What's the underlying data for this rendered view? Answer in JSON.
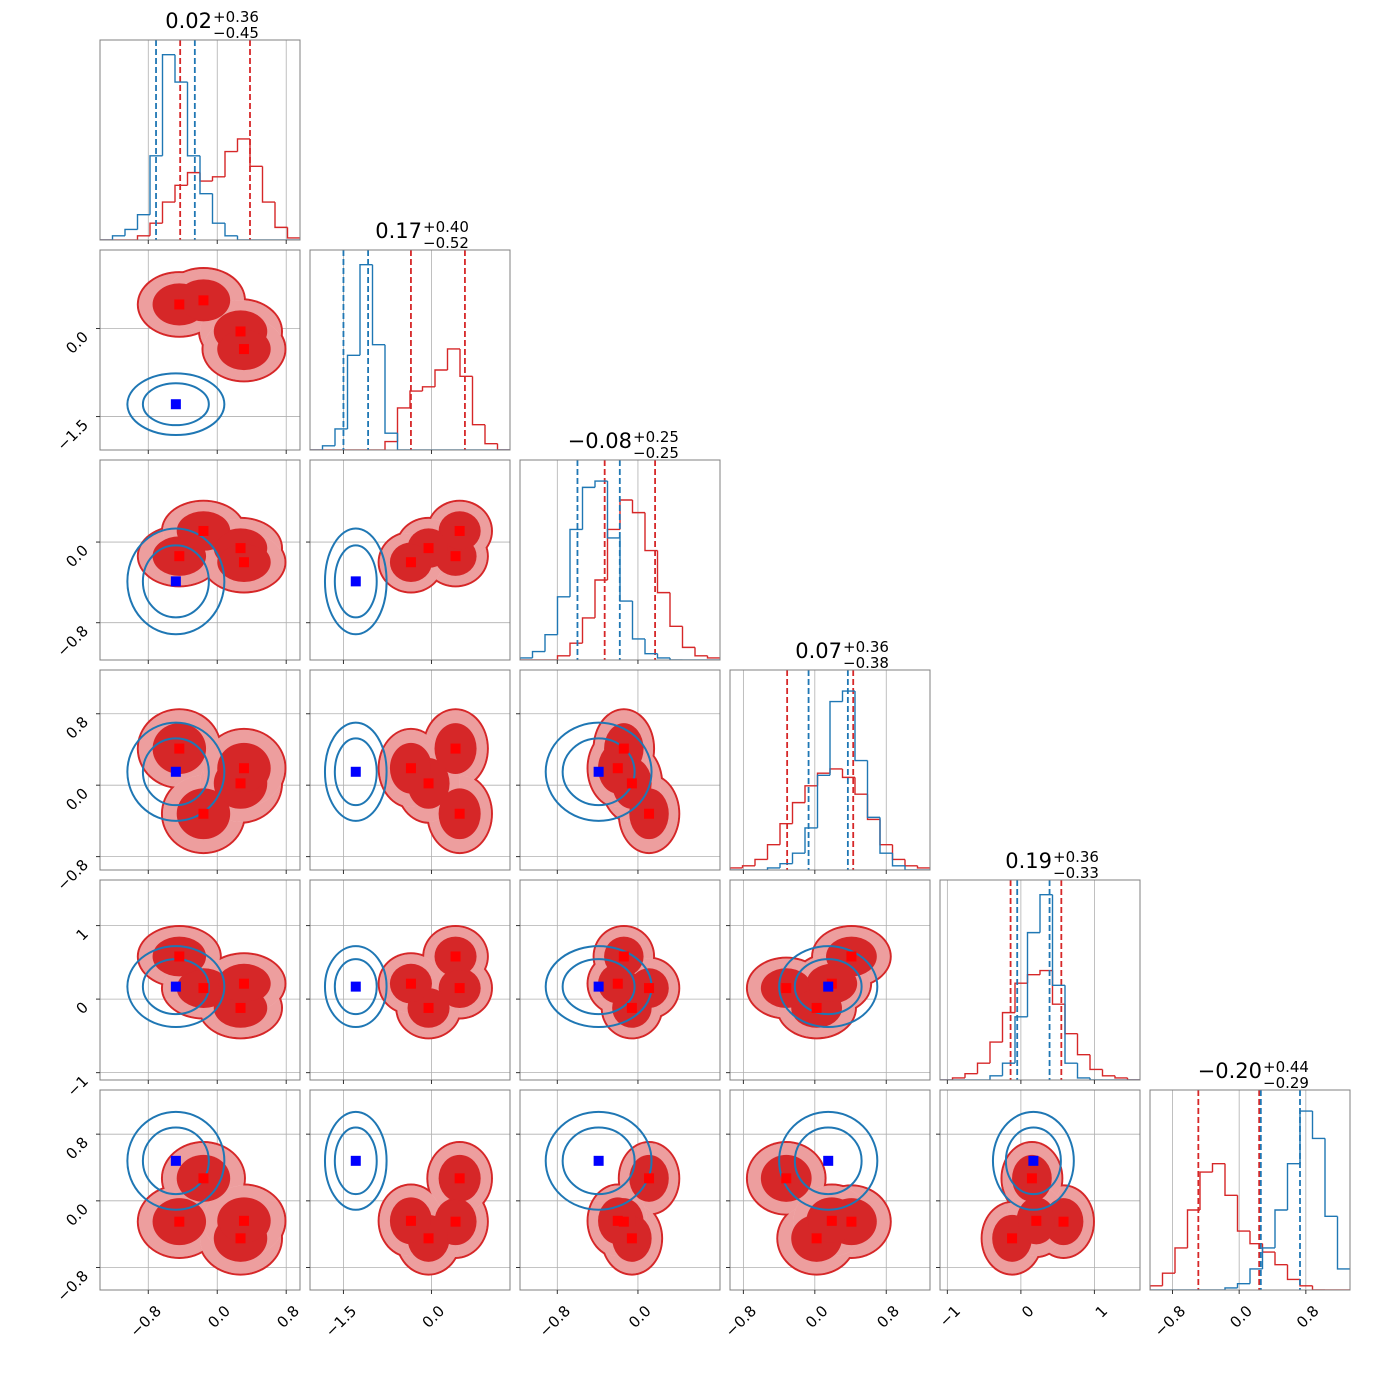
{
  "chart_data": {
    "type": "corner",
    "grid": true,
    "hist_ylim": [
      0,
      95
    ],
    "params": [
      {
        "title": "0.02",
        "title_plus": "+0.36",
        "title_minus": "−0.45",
        "lim": [
          -1.36,
          0.96
        ],
        "ticks": [
          {
            "value": -0.8,
            "label": "−0.8"
          },
          {
            "value": 0,
            "label": "0.0"
          },
          {
            "value": 0.8,
            "label": "0.8"
          }
        ],
        "bins": [
          -1.36,
          -1.215,
          -1.07,
          -0.925,
          -0.78,
          -0.635,
          -0.49,
          -0.345,
          -0.2,
          -0.055,
          0.09,
          0.235,
          0.38,
          0.525,
          0.67,
          0.815,
          0.96
        ]
      },
      {
        "title": "0.17",
        "title_plus": "+0.40",
        "title_minus": "−0.52",
        "lim": [
          -2.07,
          1.338
        ],
        "ticks": [
          {
            "value": -1.5,
            "label": "−1.5"
          },
          {
            "value": 0,
            "label": "0.0"
          }
        ],
        "bins": [
          -2.07,
          -1.857,
          -1.644,
          -1.431,
          -1.218,
          -1.005,
          -0.792,
          -0.579,
          -0.366,
          -0.153,
          0.06,
          0.273,
          0.486,
          0.699,
          0.912,
          1.125,
          1.338
        ]
      },
      {
        "title": "−0.08",
        "title_plus": "+0.25",
        "title_minus": "−0.25",
        "lim": [
          -1.17,
          0.814
        ],
        "ticks": [
          {
            "value": -0.8,
            "label": "−0.8"
          },
          {
            "value": 0,
            "label": "0.0"
          }
        ],
        "bins": [
          -1.17,
          -1.046,
          -0.922,
          -0.798,
          -0.674,
          -0.55,
          -0.426,
          -0.302,
          -0.178,
          -0.054,
          0.07,
          0.194,
          0.318,
          0.442,
          0.566,
          0.69,
          0.814
        ]
      },
      {
        "title": "0.07",
        "title_plus": "+0.36",
        "title_minus": "−0.38",
        "lim": [
          -0.95,
          1.29
        ],
        "ticks": [
          {
            "value": -0.8,
            "label": "−0.8"
          },
          {
            "value": 0,
            "label": "0.0"
          },
          {
            "value": 0.8,
            "label": "0.8"
          }
        ],
        "bins": [
          -0.95,
          -0.81,
          -0.67,
          -0.53,
          -0.39,
          -0.25,
          -0.11,
          0.03,
          0.17,
          0.31,
          0.45,
          0.59,
          0.73,
          0.87,
          1.01,
          1.15,
          1.29
        ]
      },
      {
        "title": "0.19",
        "title_plus": "+0.36",
        "title_minus": "−0.33",
        "lim": [
          -1.1,
          1.62
        ],
        "ticks": [
          {
            "value": -1,
            "label": "−1"
          },
          0,
          1
        ],
        "bins": [
          -1.1,
          -0.93,
          -0.76,
          -0.59,
          -0.42,
          -0.25,
          -0.08,
          0.09,
          0.26,
          0.43,
          0.6,
          0.77,
          0.94,
          1.11,
          1.28,
          1.45,
          1.62
        ]
      },
      {
        "title": "−0.20",
        "title_plus": "+0.44",
        "title_minus": "−0.29",
        "lim": [
          -1.07,
          1.33
        ],
        "ticks": [
          {
            "value": -0.8,
            "label": "−0.8"
          },
          {
            "value": 0,
            "label": "0.0"
          },
          {
            "value": 0.8,
            "label": "0.8"
          }
        ],
        "bins": [
          -1.07,
          -0.92,
          -0.77,
          -0.62,
          -0.47,
          -0.32,
          -0.17,
          -0.02,
          0.13,
          0.28,
          0.43,
          0.58,
          0.73,
          0.88,
          1.03,
          1.18,
          1.33
        ]
      }
    ],
    "series": [
      {
        "color": "#d62728",
        "marker_color": "#ff0000",
        "filled": true,
        "counts": [
          [
            0,
            0,
            0,
            2,
            8,
            18,
            26,
            32,
            28,
            30,
            42,
            48,
            35,
            18,
            6,
            1
          ],
          [
            0,
            0,
            0,
            0,
            0,
            0,
            4,
            20,
            28,
            30,
            38,
            48,
            35,
            12,
            3,
            0
          ],
          [
            0,
            0,
            0,
            2,
            8,
            20,
            38,
            62,
            76,
            70,
            52,
            32,
            16,
            6,
            2,
            1
          ],
          [
            1,
            2,
            5,
            12,
            22,
            32,
            40,
            46,
            48,
            44,
            36,
            24,
            12,
            5,
            2,
            1
          ],
          [
            0,
            1,
            3,
            8,
            18,
            32,
            46,
            50,
            52,
            36,
            22,
            12,
            5,
            2,
            1,
            0
          ],
          [
            2,
            8,
            20,
            38,
            56,
            60,
            45,
            28,
            22,
            18,
            12,
            5,
            2,
            0,
            0,
            0
          ]
        ],
        "quantiles": [
          [
            -0.43,
            0.38
          ],
          [
            -0.35,
            0.57
          ],
          [
            -0.33,
            0.17
          ],
          [
            -0.31,
            0.43
          ],
          [
            -0.14,
            0.55
          ],
          [
            -0.49,
            0.24
          ]
        ],
        "modes": [
          [
            -0.44,
            0.41,
            -0.14,
            0.41,
            0.58,
            -0.25
          ],
          [
            -0.16,
            0.48,
            0.11,
            -0.32,
            0.15,
            0.27
          ],
          [
            0.27,
            -0.05,
            -0.06,
            0.02,
            -0.12,
            -0.45
          ],
          [
            0.31,
            -0.35,
            -0.2,
            0.19,
            0.21,
            -0.24
          ]
        ]
      },
      {
        "color": "#1f77b4",
        "marker_color": "#0000ff",
        "filled": false,
        "counts": [
          [
            0,
            2,
            5,
            12,
            40,
            88,
            75,
            40,
            22,
            8,
            2,
            0,
            0,
            0,
            0,
            0
          ],
          [
            0,
            2,
            10,
            45,
            88,
            50,
            8,
            0,
            0,
            0,
            0,
            0,
            0,
            0,
            0,
            0
          ],
          [
            1,
            4,
            12,
            30,
            62,
            82,
            85,
            58,
            28,
            10,
            3,
            1,
            0,
            0,
            0,
            0
          ],
          [
            0,
            0,
            0,
            1,
            3,
            8,
            20,
            45,
            80,
            85,
            52,
            25,
            8,
            2,
            0,
            0
          ],
          [
            0,
            0,
            0,
            0,
            2,
            8,
            30,
            70,
            88,
            45,
            8,
            1,
            0,
            0,
            0,
            0
          ],
          [
            0,
            0,
            0,
            0,
            0,
            0,
            1,
            3,
            10,
            20,
            38,
            60,
            85,
            72,
            35,
            10
          ]
        ],
        "quantiles": [
          [
            -0.71,
            -0.26
          ],
          [
            -1.5,
            -1.08
          ],
          [
            -0.6,
            -0.18
          ],
          [
            -0.07,
            0.37
          ],
          [
            -0.05,
            0.39
          ],
          [
            0.26,
            0.73
          ]
        ],
        "modes": [
          [
            -0.48,
            -1.29,
            -0.39,
            0.15,
            0.17,
            0.48
          ]
        ]
      }
    ]
  }
}
